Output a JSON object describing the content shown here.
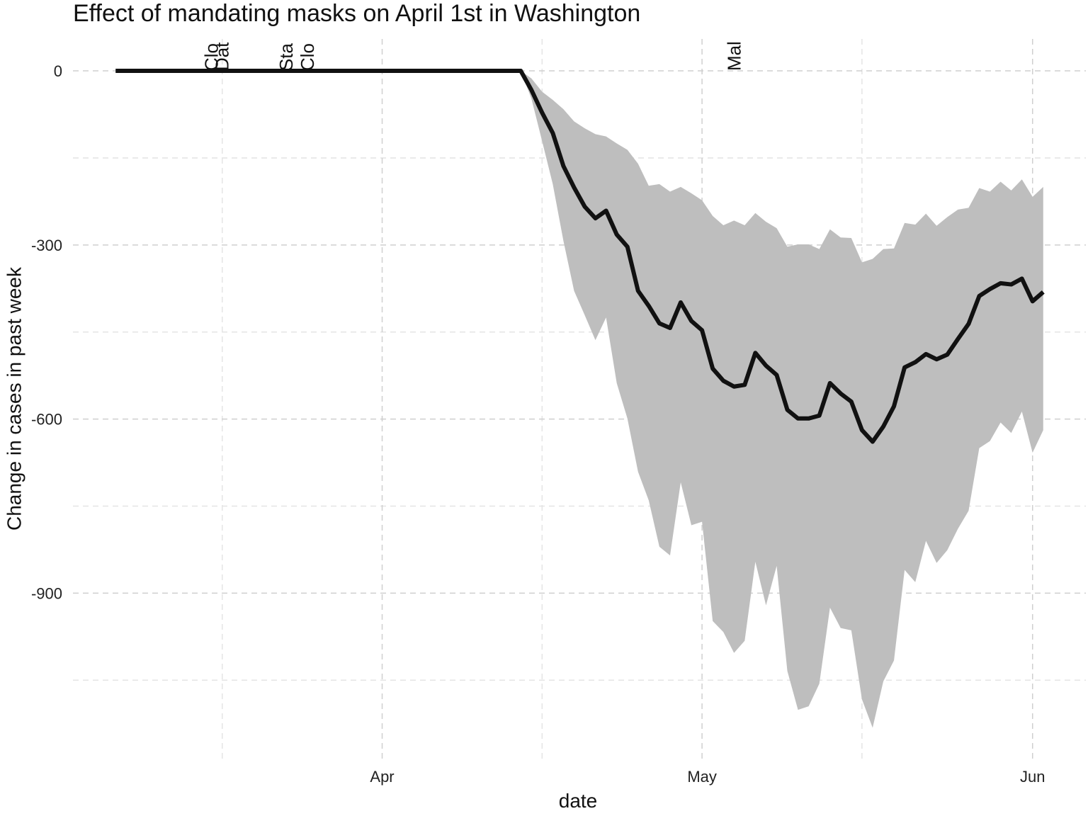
{
  "chart_data": {
    "type": "line",
    "title": "Effect of mandating masks on April 1st in Washington",
    "xlabel": "date",
    "ylabel": "Change in cases in past week",
    "x": [
      "03-07",
      "03-08",
      "03-09",
      "03-10",
      "03-11",
      "03-12",
      "03-13",
      "03-14",
      "03-15",
      "03-16",
      "03-17",
      "03-18",
      "03-19",
      "03-20",
      "03-21",
      "03-22",
      "03-23",
      "03-24",
      "03-25",
      "03-26",
      "03-27",
      "03-28",
      "03-29",
      "03-30",
      "03-31",
      "04-01",
      "04-02",
      "04-03",
      "04-04",
      "04-05",
      "04-06",
      "04-07",
      "04-08",
      "04-09",
      "04-10",
      "04-11",
      "04-12",
      "04-13",
      "04-14",
      "04-15",
      "04-16",
      "04-17",
      "04-18",
      "04-19",
      "04-20",
      "04-21",
      "04-22",
      "04-23",
      "04-24",
      "04-25",
      "04-26",
      "04-27",
      "04-28",
      "04-29",
      "04-30",
      "05-01",
      "05-02",
      "05-03",
      "05-04",
      "05-05",
      "05-06",
      "05-07",
      "05-08",
      "05-09",
      "05-10",
      "05-11",
      "05-12",
      "05-13",
      "05-14",
      "05-15",
      "05-16",
      "05-17",
      "05-18",
      "05-19",
      "05-20",
      "05-21",
      "05-22",
      "05-23",
      "05-24",
      "05-25",
      "05-26",
      "05-27",
      "05-28",
      "05-29",
      "05-30",
      "05-31",
      "06-01",
      "06-02"
    ],
    "values": [
      0,
      0,
      0,
      0,
      0,
      0,
      0,
      0,
      0,
      0,
      0,
      0,
      0,
      0,
      0,
      0,
      0,
      0,
      0,
      0,
      0,
      0,
      0,
      0,
      0,
      0,
      0,
      0,
      0,
      0,
      0,
      0,
      0,
      0,
      0,
      0,
      0,
      0,
      0,
      -33,
      -72,
      -107,
      -164,
      -201,
      -234,
      -254,
      -241,
      -282,
      -303,
      -379,
      -405,
      -435,
      -443,
      -399,
      -431,
      -447,
      -513,
      -534,
      -544,
      -541,
      -486,
      -508,
      -524,
      -584,
      -599,
      -599,
      -594,
      -538,
      -556,
      -570,
      -619,
      -639,
      -613,
      -578,
      -511,
      -502,
      -488,
      -497,
      -489,
      -462,
      -436,
      -388,
      -376,
      -366,
      -368,
      -358,
      -397,
      -381
    ],
    "upper": [
      0,
      0,
      0,
      0,
      0,
      0,
      0,
      0,
      0,
      0,
      0,
      0,
      0,
      0,
      0,
      0,
      0,
      0,
      0,
      0,
      0,
      0,
      0,
      0,
      0,
      0,
      0,
      0,
      0,
      0,
      0,
      0,
      0,
      0,
      0,
      0,
      0,
      0,
      0,
      -13,
      -36,
      -50,
      -66,
      -87,
      -99,
      -109,
      -113,
      -125,
      -136,
      -160,
      -198,
      -195,
      -208,
      -200,
      -211,
      -223,
      -250,
      -266,
      -258,
      -266,
      -245,
      -260,
      -271,
      -303,
      -299,
      -299,
      -307,
      -273,
      -287,
      -288,
      -330,
      -324,
      -307,
      -306,
      -262,
      -265,
      -246,
      -267,
      -252,
      -239,
      -236,
      -202,
      -208,
      -191,
      -206,
      -187,
      -217,
      -200
    ],
    "lower": [
      0,
      0,
      0,
      0,
      0,
      0,
      0,
      0,
      0,
      0,
      0,
      0,
      0,
      0,
      0,
      0,
      0,
      0,
      0,
      0,
      0,
      0,
      0,
      0,
      0,
      0,
      0,
      0,
      0,
      0,
      0,
      0,
      0,
      0,
      0,
      0,
      0,
      0,
      0,
      -48,
      -121,
      -195,
      -293,
      -379,
      -421,
      -464,
      -425,
      -538,
      -599,
      -691,
      -740,
      -820,
      -835,
      -709,
      -783,
      -777,
      -948,
      -967,
      -1003,
      -982,
      -846,
      -921,
      -853,
      -1034,
      -1101,
      -1095,
      -1056,
      -925,
      -960,
      -964,
      -1083,
      -1132,
      -1052,
      -1016,
      -860,
      -881,
      -810,
      -848,
      -826,
      -789,
      -758,
      -650,
      -638,
      -606,
      -624,
      -587,
      -658,
      -619
    ],
    "color": "#111111",
    "band_color": "#bebebe",
    "xlim": [
      "03-03",
      "06-06"
    ],
    "xticks": [
      {
        "value": "04-01",
        "label": "Apr"
      },
      {
        "value": "05-01",
        "label": "May"
      },
      {
        "value": "06-01",
        "label": "Jun"
      }
    ],
    "minor_xticks": [
      "03-17",
      "04-16",
      "05-16"
    ],
    "ylim": [
      -1190,
      55
    ],
    "yticks": [
      0,
      -300,
      -600,
      -900
    ],
    "minor_yticks": [
      -150,
      -450,
      -750,
      -1050
    ],
    "grid": true,
    "annotations": [
      {
        "x": "03-16",
        "label": "Clo"
      },
      {
        "x": "03-17",
        "label": "Dat"
      },
      {
        "x": "03-23",
        "label": "Sta"
      },
      {
        "x": "03-25",
        "label": "Clo"
      },
      {
        "x": "05-04",
        "label": "Mal"
      }
    ]
  }
}
